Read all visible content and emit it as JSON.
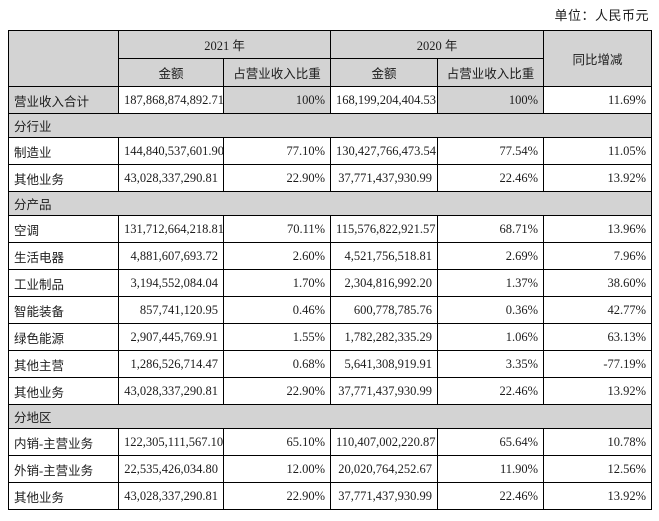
{
  "unit_label": "单位：人民币元",
  "colors": {
    "shaded_bg": "#d3d3d3",
    "border": "#000000",
    "text": "#1c1c1c"
  },
  "table": {
    "headers": {
      "year_2021": "2021 年",
      "year_2020": "2020 年",
      "amount": "金额",
      "share": "占营业收入比重",
      "yoy": "同比增减"
    },
    "rows": [
      {
        "type": "total",
        "label": "营业收入合计",
        "amount_2021": "187,868,874,892.71",
        "share_2021": "100%",
        "amount_2020": "168,199,204,404.53",
        "share_2020": "100%",
        "yoy": "11.69%"
      },
      {
        "type": "section",
        "label": "分行业"
      },
      {
        "type": "data",
        "label": "制造业",
        "amount_2021": "144,840,537,601.90",
        "share_2021": "77.10%",
        "amount_2020": "130,427,766,473.54",
        "share_2020": "77.54%",
        "yoy": "11.05%"
      },
      {
        "type": "data",
        "label": "其他业务",
        "amount_2021": "43,028,337,290.81",
        "share_2021": "22.90%",
        "amount_2020": "37,771,437,930.99",
        "share_2020": "22.46%",
        "yoy": "13.92%"
      },
      {
        "type": "section",
        "label": "分产品"
      },
      {
        "type": "data",
        "label": "空调",
        "amount_2021": "131,712,664,218.81",
        "share_2021": "70.11%",
        "amount_2020": "115,576,822,921.57",
        "share_2020": "68.71%",
        "yoy": "13.96%"
      },
      {
        "type": "data",
        "label": "生活电器",
        "amount_2021": "4,881,607,693.72",
        "share_2021": "2.60%",
        "amount_2020": "4,521,756,518.81",
        "share_2020": "2.69%",
        "yoy": "7.96%"
      },
      {
        "type": "data",
        "label": "工业制品",
        "amount_2021": "3,194,552,084.04",
        "share_2021": "1.70%",
        "amount_2020": "2,304,816,992.20",
        "share_2020": "1.37%",
        "yoy": "38.60%"
      },
      {
        "type": "data",
        "label": "智能装备",
        "amount_2021": "857,741,120.95",
        "share_2021": "0.46%",
        "amount_2020": "600,778,785.76",
        "share_2020": "0.36%",
        "yoy": "42.77%"
      },
      {
        "type": "data",
        "label": "绿色能源",
        "amount_2021": "2,907,445,769.91",
        "share_2021": "1.55%",
        "amount_2020": "1,782,282,335.29",
        "share_2020": "1.06%",
        "yoy": "63.13%"
      },
      {
        "type": "data",
        "label": "其他主营",
        "amount_2021": "1,286,526,714.47",
        "share_2021": "0.68%",
        "amount_2020": "5,641,308,919.91",
        "share_2020": "3.35%",
        "yoy": "-77.19%"
      },
      {
        "type": "data",
        "label": "其他业务",
        "amount_2021": "43,028,337,290.81",
        "share_2021": "22.90%",
        "amount_2020": "37,771,437,930.99",
        "share_2020": "22.46%",
        "yoy": "13.92%"
      },
      {
        "type": "section",
        "label": "分地区"
      },
      {
        "type": "data",
        "label": "内销-主营业务",
        "amount_2021": "122,305,111,567.10",
        "share_2021": "65.10%",
        "amount_2020": "110,407,002,220.87",
        "share_2020": "65.64%",
        "yoy": "10.78%"
      },
      {
        "type": "data",
        "label": "外销-主营业务",
        "amount_2021": "22,535,426,034.80",
        "share_2021": "12.00%",
        "amount_2020": "20,020,764,252.67",
        "share_2020": "11.90%",
        "yoy": "12.56%"
      },
      {
        "type": "data",
        "label": "其他业务",
        "amount_2021": "43,028,337,290.81",
        "share_2021": "22.90%",
        "amount_2020": "37,771,437,930.99",
        "share_2020": "22.46%",
        "yoy": "13.92%"
      }
    ]
  }
}
